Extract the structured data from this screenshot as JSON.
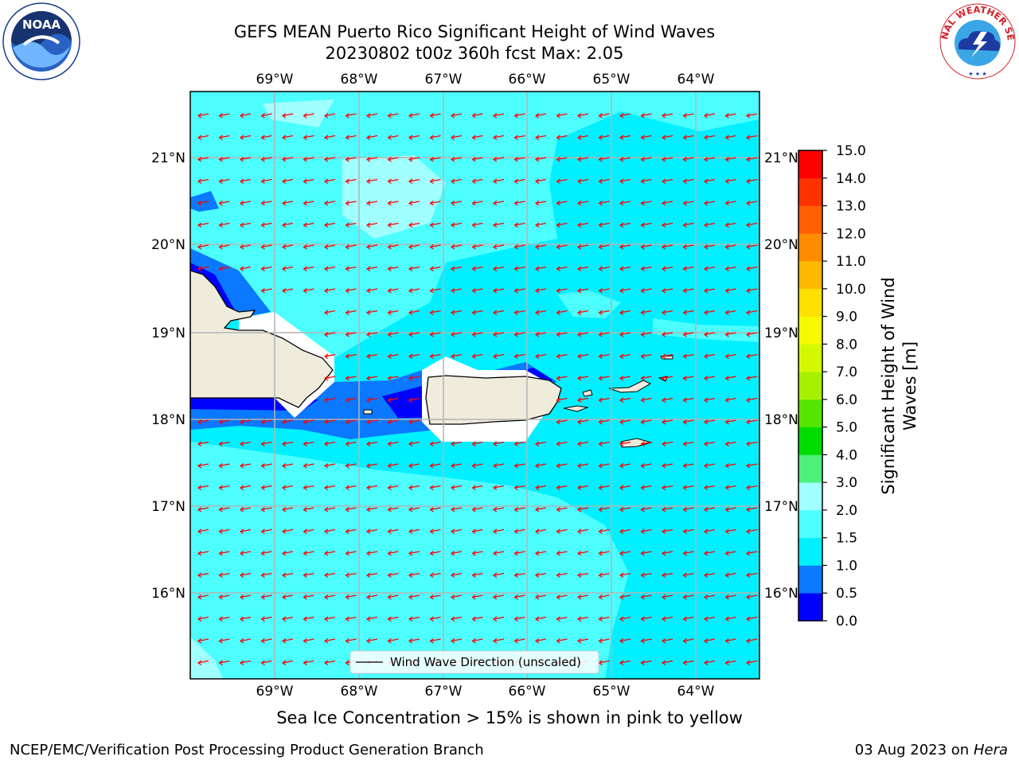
{
  "title": {
    "line1": "GEFS MEAN Puerto Rico Significant Height of Wind Waves",
    "line2": "20230802 t00z 360h fcst   Max: 2.05"
  },
  "map": {
    "lon_ticks": [
      "69°W",
      "68°W",
      "67°W",
      "66°W",
      "65°W",
      "64°W"
    ],
    "lat_ticks": [
      "21°N",
      "20°N",
      "19°N",
      "18°N",
      "17°N",
      "16°N"
    ],
    "legend_label": "Wind Wave Direction (unscaled)",
    "arrow_color": "#ff0000",
    "land_color": "#efecdc"
  },
  "colorbar": {
    "label_line1": "Significant Height of Wind",
    "label_line2": "Waves [m]",
    "ticks": [
      "0.0",
      "0.5",
      "1.0",
      "1.5",
      "2.0",
      "3.0",
      "4.0",
      "5.0",
      "6.0",
      "7.0",
      "8.0",
      "9.0",
      "10.0",
      "11.0",
      "12.0",
      "13.0",
      "14.0",
      "15.0"
    ],
    "colors": [
      "#0000ff",
      "#0a78ff",
      "#00f0ff",
      "#4dfeff",
      "#a0ffff",
      "#4df07a",
      "#00dc00",
      "#55e600",
      "#a6f000",
      "#d4f800",
      "#f5fa00",
      "#ffe000",
      "#ffb800",
      "#ff8c00",
      "#ff5f00",
      "#ff3200",
      "#ff0000"
    ]
  },
  "footnote": "Sea Ice Concentration > 15% is shown in pink to yellow",
  "credits": {
    "left": "NCEP/EMC/Verification Post Processing Product Generation Branch",
    "right_date": "03 Aug 2023 on",
    "right_machine": "Hera"
  },
  "logos": {
    "noaa_text": "NOAA",
    "nws_text": "NATIONAL WEATHER SERVICE"
  }
}
